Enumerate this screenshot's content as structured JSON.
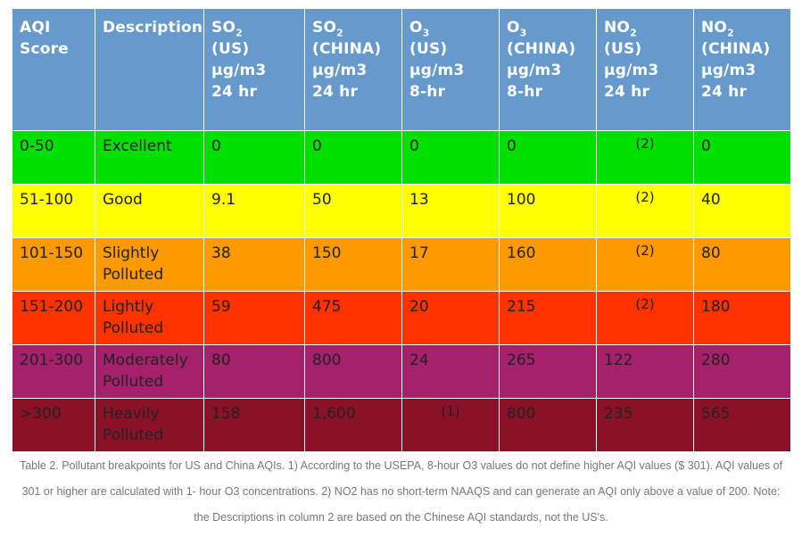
{
  "table": {
    "headers": [
      {
        "pre": "AQI",
        "sub": "",
        "lines": [
          "Score"
        ]
      },
      {
        "pre": "Description",
        "sub": "",
        "lines": []
      },
      {
        "pre": "SO",
        "sub": "2",
        "lines": [
          "(US)",
          "µg/m3",
          "24 hr"
        ]
      },
      {
        "pre": "SO",
        "sub": "2",
        "lines": [
          "(CHINA)",
          "µg/m3",
          "24 hr"
        ]
      },
      {
        "pre": "O",
        "sub": "3",
        "lines": [
          "(US)",
          "µg/m3",
          "8-hr"
        ]
      },
      {
        "pre": "O",
        "sub": "3",
        "lines": [
          "(CHINA)",
          "µg/m3",
          "8-hr"
        ]
      },
      {
        "pre": "NO",
        "sub": "2",
        "lines": [
          "(US)",
          "µg/m3",
          "24 hr"
        ]
      },
      {
        "pre": "NO",
        "sub": "2",
        "lines": [
          "(CHINA)",
          "µg/m3",
          "24 hr"
        ]
      }
    ],
    "rows": [
      {
        "score": "0-50",
        "desc": [
          "Excellent"
        ],
        "so2_us": "0",
        "so2_china": "0",
        "o3_us": "0",
        "o3_china": "0",
        "no2_us": "(2)",
        "no2_china": "0",
        "color": "#00e000"
      },
      {
        "score": "51-100",
        "desc": [
          "Good"
        ],
        "so2_us": "9.1",
        "so2_china": "50",
        "o3_us": "13",
        "o3_china": "100",
        "no2_us": "(2)",
        "no2_china": "40",
        "color": "#ffff00"
      },
      {
        "score": "101-150",
        "desc": [
          "Slightly",
          "Polluted"
        ],
        "so2_us": "38",
        "so2_china": "150",
        "o3_us": "17",
        "o3_china": "160",
        "no2_us": "(2)",
        "no2_china": "80",
        "color": "#ff9900"
      },
      {
        "score": "151-200",
        "desc": [
          "Lightly",
          "Polluted"
        ],
        "so2_us": "59",
        "so2_china": "475",
        "o3_us": "20",
        "o3_china": "215",
        "no2_us": "(2)",
        "no2_china": "180",
        "color": "#ff3300"
      },
      {
        "score": "201-300",
        "desc": [
          "Moderately",
          "Polluted"
        ],
        "so2_us": "80",
        "so2_china": "800",
        "o3_us": "24",
        "o3_china": "265",
        "no2_us": "122",
        "no2_china": "280",
        "color": "#a6216b"
      },
      {
        "score": ">300",
        "desc": [
          "Heavily",
          "Polluted"
        ],
        "so2_us": "158",
        "so2_china": "1,600",
        "o3_us": "(1)",
        "o3_china": "800",
        "no2_us": "235",
        "no2_china": "565",
        "color": "#8b1129"
      }
    ]
  },
  "caption": {
    "lines": [
      "Table 2. Pollutant breakpoints for US and China AQIs. 1) According to the USEPA, 8-hour O3 values do not define higher AQI values ($ 301). AQI values of",
      "301 or higher are calculated with 1- hour O3 concentrations. 2) NO2 has no short-term NAAQS and can generate an AQI only above a value of 200. Note:",
      "the Descriptions in column 2 are based on the Chinese AQI standards, not the US's."
    ]
  }
}
